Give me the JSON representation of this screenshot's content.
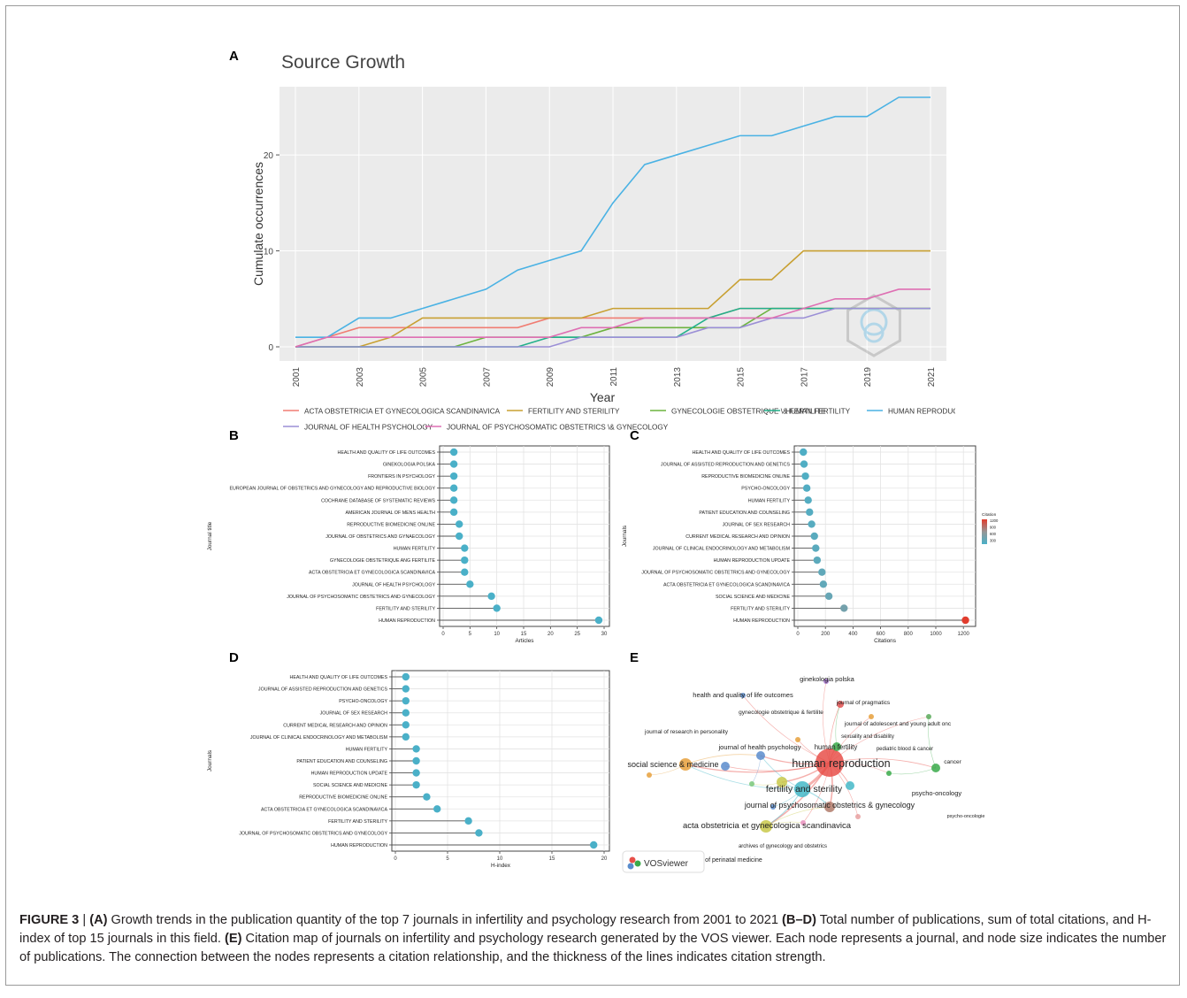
{
  "panel_labels": {
    "a": "A",
    "b": "B",
    "c": "C",
    "d": "D",
    "e": "E"
  },
  "caption": {
    "figure_label": "FIGURE 3",
    "separator": " | ",
    "label_a": "(A)",
    "text_a": " Growth trends in the publication quantity of the top 7 journals in infertility and psychology research from 2001 to 2021 ",
    "label_bd": "(B–D)",
    "text_bd": " Total number of publications, sum of total citations, and H-index of top 15 journals in this field. ",
    "label_e": "(E)",
    "text_e": " Citation map of journals on infertility and psychology research generated by the VOS viewer. Each node represents a journal, and node size indicates the number of publications. The connection between the nodes represents a citation relationship, and the thickness of the lines indicates citation strength."
  },
  "chart_data": [
    {
      "panel": "A",
      "type": "line",
      "title": "Source Growth",
      "xlabel": "Year",
      "ylabel": "Cumulate occurrences",
      "ylim": [
        0,
        26
      ],
      "yticks": [
        0,
        10,
        20
      ],
      "x": [
        2001,
        2002,
        2003,
        2004,
        2005,
        2006,
        2007,
        2008,
        2009,
        2010,
        2011,
        2012,
        2013,
        2014,
        2015,
        2016,
        2017,
        2018,
        2019,
        2020,
        2021
      ],
      "xticks": [
        2001,
        2003,
        2005,
        2007,
        2009,
        2011,
        2013,
        2015,
        2017,
        2019,
        2021
      ],
      "grid": true,
      "legend_position": "bottom",
      "series": [
        {
          "name": "ACTA OBSTETRICIA ET GYNECOLOGICA SCANDINAVICA",
          "color": "#f07d73",
          "values": [
            0,
            1,
            2,
            2,
            2,
            2,
            2,
            2,
            3,
            3,
            3,
            3,
            3,
            3,
            4,
            4,
            4,
            4,
            4,
            4,
            4
          ]
        },
        {
          "name": "FERTILITY AND STERILITY",
          "color": "#c8a032",
          "values": [
            0,
            0,
            0,
            1,
            3,
            3,
            3,
            3,
            3,
            3,
            4,
            4,
            4,
            4,
            7,
            7,
            10,
            10,
            10,
            10,
            10
          ]
        },
        {
          "name": "GYNECOLOGIE OBSTETRIQUE \\& FERTILITE",
          "color": "#6cb33f",
          "values": [
            0,
            0,
            0,
            0,
            0,
            0,
            1,
            1,
            1,
            1,
            2,
            2,
            2,
            2,
            2,
            4,
            4,
            4,
            4,
            4,
            4
          ]
        },
        {
          "name": "HUMAN FERTILITY",
          "color": "#22b08a",
          "values": [
            0,
            0,
            0,
            0,
            0,
            0,
            0,
            0,
            1,
            1,
            1,
            1,
            1,
            3,
            4,
            4,
            4,
            4,
            4,
            4,
            4
          ]
        },
        {
          "name": "HUMAN REPRODUCTION",
          "color": "#4ab2e4",
          "values": [
            1,
            1,
            3,
            3,
            4,
            5,
            6,
            8,
            9,
            10,
            15,
            19,
            20,
            21,
            22,
            22,
            23,
            24,
            24,
            26,
            26
          ]
        },
        {
          "name": "JOURNAL OF HEALTH PSYCHOLOGY",
          "color": "#9b8fd6",
          "values": [
            0,
            0,
            0,
            0,
            0,
            0,
            0,
            0,
            0,
            1,
            1,
            1,
            1,
            2,
            2,
            3,
            3,
            4,
            4,
            4,
            4
          ]
        },
        {
          "name": "JOURNAL OF PSYCHOSOMATIC OBSTETRICS \\& GYNECOLOGY",
          "color": "#de6fb3",
          "values": [
            0,
            1,
            1,
            1,
            1,
            1,
            1,
            1,
            1,
            2,
            2,
            3,
            3,
            3,
            3,
            3,
            4,
            5,
            5,
            6,
            6
          ]
        }
      ]
    },
    {
      "panel": "B",
      "type": "scatter",
      "xlabel": "Articles",
      "ylabel": "Journal title",
      "xlim": [
        0,
        30
      ],
      "xticks": [
        0,
        5,
        10,
        15,
        20,
        25,
        30
      ],
      "categories": [
        "HEALTH AND QUALITY OF LIFE OUTCOMES",
        "GINEKOLOGIA POLSKA",
        "FRONTIERS IN PSYCHOLOGY",
        "EUROPEAN JOURNAL OF OBSTETRICS AND GYNECOLOGY AND REPRODUCTIVE BIOLOGY",
        "COCHRANE DATABASE OF SYSTEMATIC REVIEWS",
        "AMERICAN JOURNAL OF MENS HEALTH",
        "REPRODUCTIVE BIOMEDICINE ONLINE",
        "JOURNAL OF OBSTETRICS AND GYNAECOLOGY",
        "HUMAN FERTILITY",
        "GYNECOLOGIE OBSTETRIQUE ANG FERTILITE",
        "ACTA OBSTETRICIA ET GYNECOLOGICA SCANDINAVICA",
        "JOURNAL OF HEALTH PSYCHOLOGY",
        "JOURNAL OF PSYCHOSOMATIC OBSTETRICS AND GYNECOLOGY",
        "FERTILITY AND STERILITY",
        "HUMAN REPRODUCTION"
      ],
      "values": [
        2,
        2,
        2,
        2,
        2,
        2,
        3,
        3,
        4,
        4,
        4,
        5,
        9,
        10,
        29
      ],
      "point_color": "#4ab0c8"
    },
    {
      "panel": "C",
      "type": "scatter",
      "xlabel": "Citations",
      "ylabel": "Journals",
      "xlim": [
        0,
        1250
      ],
      "xticks": [
        0,
        200,
        400,
        600,
        800,
        1000,
        1200
      ],
      "legend_title": "Citation",
      "legend_ticks": [
        "1200",
        "900",
        "600",
        "300"
      ],
      "legend_position": "right",
      "categories": [
        "HEALTH AND QUALITY OF LIFE OUTCOMES",
        "JOURNAL OF ASSISTED REPRODUCTION AND GENETICS",
        "REPRODUCTIVE BIOMEDICINE ONLINE",
        "PSYCHO-ONCOLOGY",
        "HUMAN FERTILITY",
        "PATIENT EDUCATION AND COUNSELING",
        "JOURNAL OF SEX RESEARCH",
        "CURRENT MEDICAL RESEARCH AND OPINION",
        "JOURNAL OF CLINICAL ENDOCRINOLOGY AND METABOLISM",
        "HUMAN REPRODUCTION UPDATE",
        "JOURNAL OF PSYCHOSOMATIC OBSTETRICS AND GYNECOLOGY",
        "ACTA OBSTETRICIA ET GYNECOLOGICA SCANDINAVICA",
        "SOCIAL SCIENCE AND MEDICINE",
        "FERTILITY AND STERILITY",
        "HUMAN REPRODUCTION"
      ],
      "values": [
        40,
        45,
        55,
        65,
        75,
        85,
        100,
        120,
        130,
        140,
        175,
        185,
        225,
        335,
        1215
      ]
    },
    {
      "panel": "D",
      "type": "scatter",
      "xlabel": "H-index",
      "ylabel": "Journals",
      "xlim": [
        0,
        20
      ],
      "xticks": [
        0,
        5,
        10,
        15,
        20
      ],
      "categories": [
        "HEALTH AND QUALITY OF LIFE OUTCOMES",
        "JOURNAL OF ASSISTED REPRODUCTION AND GENETICS",
        "PSYCHO-ONCOLOGY",
        "JOURNAL OF SEX RESEARCH",
        "CURRENT MEDICAL RESEARCH AND OPINION",
        "JOURNAL OF CLINICAL ENDOCRINOLOGY AND METABOLISM",
        "HUMAN FERTILITY",
        "PATIENT EDUCATION AND COUNSELING",
        "HUMAN REPRODUCTION UPDATE",
        "SOCIAL SCIENCE AND MEDICINE",
        "REPRODUCTIVE BIOMEDICINE ONLINE",
        "ACTA OBSTETRICIA ET GYNECOLOGICA SCANDINAVICA",
        "FERTILITY AND STERILITY",
        "JOURNAL OF PSYCHOSOMATIC OBSTETRICS AND GYNECOLOGY",
        "HUMAN REPRODUCTION"
      ],
      "values": [
        1,
        1,
        1,
        1,
        1,
        1,
        2,
        2,
        2,
        2,
        3,
        4,
        7,
        8,
        19
      ],
      "point_color": "#4ab0c8"
    }
  ],
  "network": {
    "panel": "E",
    "logo_text": "VOSviewer",
    "labels": [
      "ginekologia polska",
      "health and quality of life outcomes",
      "journal of pragmatics",
      "gynecologie obstetrique & fertilite",
      "journal of adolescent and young adult onc",
      "journal of research in personality",
      "sexuality and disability",
      "journal of health psychology",
      "human fertility",
      "pediatric blood & cancer",
      "social science & medicine",
      "human reproduction",
      "cancer",
      "fertility and sterility",
      "psycho-oncology",
      "journal of psychosomatic obstetrics & gynecology",
      "psycho-oncologie",
      "acta obstetricia et gynecologica scandinavica",
      "archives of gynecology and obstetrics",
      "journal of perinatal medicine"
    ]
  }
}
